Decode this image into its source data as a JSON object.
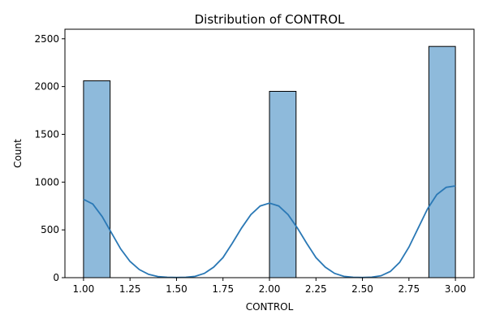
{
  "chart_data": {
    "type": "bar",
    "title": "Distribution of CONTROL",
    "xlabel": "CONTROL",
    "ylabel": "Count",
    "xlim": [
      0.9,
      3.1
    ],
    "ylim": [
      0,
      2600
    ],
    "x_ticks": [
      1.0,
      1.25,
      1.5,
      1.75,
      2.0,
      2.25,
      2.5,
      2.75,
      3.0
    ],
    "x_tick_labels": [
      "1.00",
      "1.25",
      "1.50",
      "1.75",
      "2.00",
      "2.25",
      "2.50",
      "2.75",
      "3.00"
    ],
    "y_ticks": [
      0,
      500,
      1000,
      1500,
      2000,
      2500
    ],
    "y_tick_labels": [
      "0",
      "500",
      "1000",
      "1500",
      "2000",
      "2500"
    ],
    "bins": [
      {
        "x0": 1.0,
        "x1": 1.143,
        "count": 2060
      },
      {
        "x0": 2.0,
        "x1": 2.143,
        "count": 1950
      },
      {
        "x0": 2.857,
        "x1": 3.0,
        "count": 2420
      }
    ],
    "kde": {
      "x": [
        1.0,
        1.05,
        1.1,
        1.15,
        1.2,
        1.25,
        1.3,
        1.35,
        1.4,
        1.45,
        1.5,
        1.55,
        1.6,
        1.65,
        1.7,
        1.75,
        1.8,
        1.85,
        1.9,
        1.95,
        2.0,
        2.05,
        2.1,
        2.15,
        2.2,
        2.25,
        2.3,
        2.35,
        2.4,
        2.45,
        2.5,
        2.55,
        2.6,
        2.65,
        2.7,
        2.75,
        2.8,
        2.85,
        2.9,
        2.95,
        3.0
      ],
      "y": [
        820,
        770,
        640,
        470,
        300,
        170,
        85,
        35,
        12,
        4,
        2,
        4,
        14,
        45,
        110,
        210,
        360,
        520,
        660,
        750,
        780,
        750,
        660,
        520,
        360,
        210,
        110,
        45,
        14,
        4,
        2,
        5,
        20,
        65,
        160,
        320,
        520,
        720,
        870,
        945,
        960
      ]
    },
    "colors": {
      "bar_fill": "#8ebadb",
      "bar_edge": "#000000",
      "kde_line": "#2a78b5"
    },
    "grid": false,
    "legend": "none"
  }
}
